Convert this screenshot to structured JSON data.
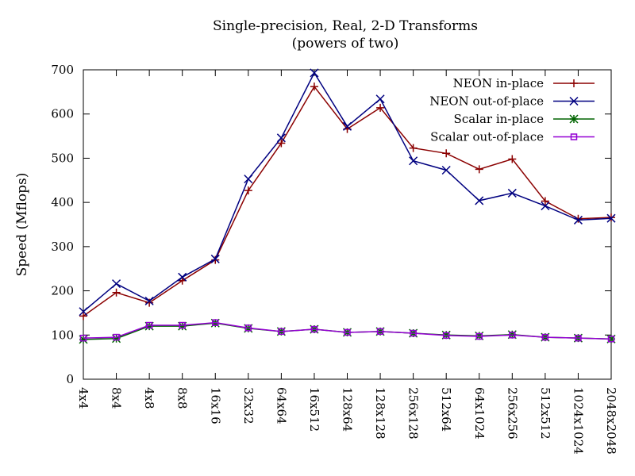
{
  "chart_data": {
    "type": "line",
    "title": "Single-precision, Real, 2-D Transforms",
    "subtitle": "(powers of two)",
    "xlabel": "",
    "ylabel": "Speed (Mflops)",
    "ylim": [
      0,
      700
    ],
    "yticks": [
      0,
      100,
      200,
      300,
      400,
      500,
      600,
      700
    ],
    "grid": false,
    "legend_position": "top-right",
    "categories": [
      "4x4",
      "8x4",
      "4x8",
      "8x8",
      "16x16",
      "32x32",
      "64x64",
      "16x512",
      "128x64",
      "128x128",
      "256x128",
      "512x64",
      "64x1024",
      "256x256",
      "512x512",
      "1024x1024",
      "2048x2048"
    ],
    "series": [
      {
        "name": "NEON in-place",
        "color": "#8b0000",
        "marker": "plus",
        "values": [
          143,
          196,
          173,
          223,
          270,
          427,
          534,
          662,
          566,
          614,
          523,
          511,
          475,
          498,
          403,
          363,
          366
        ]
      },
      {
        "name": "NEON out-of-place",
        "color": "#000080",
        "marker": "cross",
        "values": [
          153,
          216,
          177,
          231,
          272,
          453,
          546,
          693,
          572,
          634,
          494,
          473,
          404,
          421,
          392,
          360,
          364
        ]
      },
      {
        "name": "Scalar in-place",
        "color": "#006400",
        "marker": "star",
        "values": [
          90,
          92,
          120,
          120,
          127,
          115,
          108,
          113,
          106,
          108,
          104,
          100,
          98,
          101,
          95,
          93,
          91
        ]
      },
      {
        "name": "Scalar out-of-place",
        "color": "#9400d3",
        "marker": "square",
        "values": [
          93,
          95,
          122,
          122,
          128,
          116,
          108,
          113,
          106,
          108,
          104,
          99,
          97,
          100,
          95,
          93,
          91
        ]
      }
    ]
  }
}
